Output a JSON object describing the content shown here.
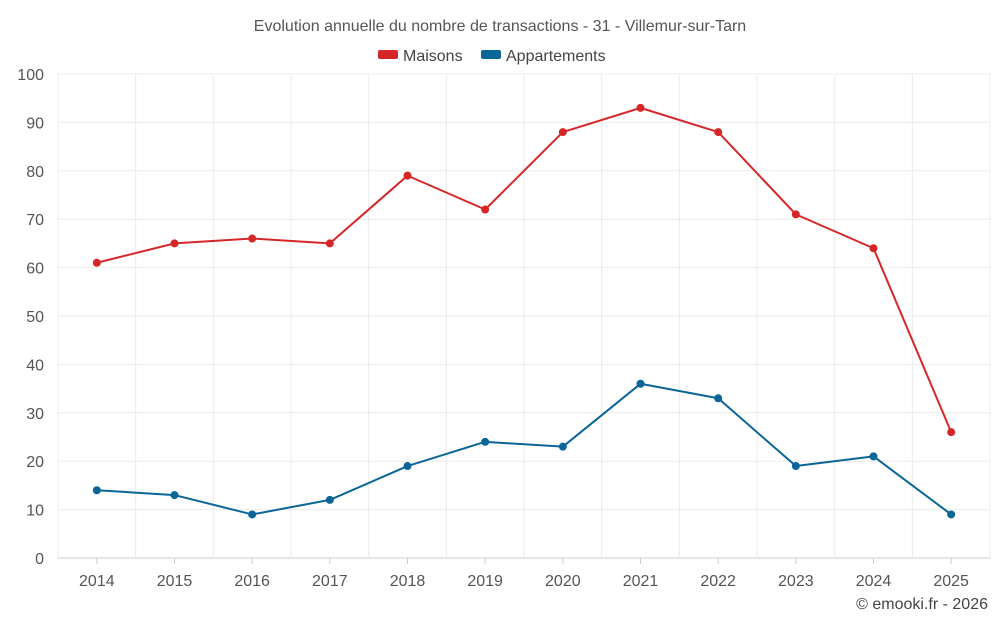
{
  "chart_data": {
    "type": "line",
    "title": "Evolution annuelle du nombre de transactions - 31 - Villemur-sur-Tarn",
    "categories": [
      "2014",
      "2015",
      "2016",
      "2017",
      "2018",
      "2019",
      "2020",
      "2021",
      "2022",
      "2023",
      "2024",
      "2025"
    ],
    "series": [
      {
        "name": "Maisons",
        "color": "#d62728",
        "values": [
          61,
          65,
          66,
          65,
          79,
          72,
          88,
          93,
          88,
          71,
          64,
          26
        ]
      },
      {
        "name": "Appartements",
        "color": "#0a6699",
        "values": [
          14,
          13,
          9,
          12,
          19,
          24,
          23,
          36,
          33,
          19,
          21,
          9
        ]
      }
    ],
    "ylim": [
      0,
      100
    ],
    "yticks": [
      0,
      10,
      20,
      30,
      40,
      50,
      60,
      70,
      80,
      90,
      100
    ],
    "legend_position": "top-center",
    "grid": true,
    "xlabel": "",
    "ylabel": ""
  },
  "credit": "© emooki.fr - 2026"
}
